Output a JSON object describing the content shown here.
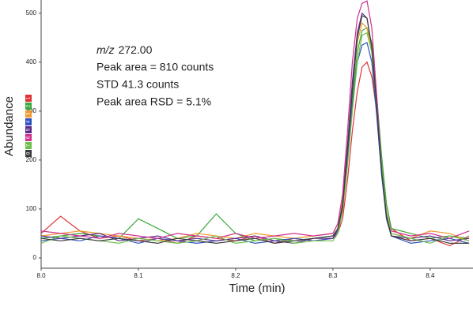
{
  "chart_data": {
    "type": "line",
    "x_label": "Time (min)",
    "y_label": "Abundance",
    "annotations": [
      [
        "m/z",
        "272.00"
      ],
      [
        "Peak area = 810 counts"
      ],
      [
        "STD 41.3 counts"
      ],
      [
        "Peak area RSD = 5.1%"
      ]
    ],
    "xlim": [
      8.0,
      8.444
    ],
    "ylim": [
      -21,
      527
    ],
    "xticks": [
      {
        "value": 8.0,
        "label": "8.0"
      },
      8.1,
      8.2,
      8.3,
      8.4
    ],
    "yticks": [
      0,
      100,
      200,
      300,
      400,
      500
    ],
    "x": [
      8.0,
      8.02,
      8.04,
      8.06,
      8.08,
      8.1,
      8.12,
      8.14,
      8.16,
      8.18,
      8.2,
      8.22,
      8.24,
      8.26,
      8.28,
      8.3,
      8.305,
      8.31,
      8.315,
      8.32,
      8.325,
      8.33,
      8.335,
      8.34,
      8.345,
      8.35,
      8.355,
      8.36,
      8.38,
      8.4,
      8.42,
      8.44
    ],
    "series": [
      {
        "name": "1",
        "color": "#e03434",
        "values": [
          50,
          85,
          55,
          40,
          45,
          35,
          40,
          30,
          45,
          40,
          35,
          45,
          30,
          40,
          35,
          40,
          50,
          80,
          160,
          260,
          340,
          390,
          400,
          370,
          300,
          200,
          110,
          60,
          35,
          40,
          25,
          45
        ]
      },
      {
        "name": "2",
        "color": "#3aa83a",
        "values": [
          40,
          45,
          50,
          45,
          40,
          80,
          60,
          40,
          45,
          90,
          50,
          35,
          40,
          35,
          40,
          45,
          60,
          100,
          200,
          320,
          420,
          465,
          470,
          440,
          330,
          210,
          110,
          60,
          50,
          40,
          45,
          40
        ]
      },
      {
        "name": "3",
        "color": "#f09a2a",
        "values": [
          45,
          50,
          55,
          50,
          45,
          40,
          35,
          40,
          50,
          45,
          40,
          50,
          45,
          40,
          45,
          50,
          70,
          120,
          230,
          350,
          440,
          480,
          470,
          420,
          300,
          180,
          90,
          50,
          40,
          55,
          50,
          35
        ]
      },
      {
        "name": "4",
        "color": "#3050c0",
        "values": [
          35,
          40,
          35,
          45,
          40,
          30,
          40,
          35,
          30,
          35,
          40,
          30,
          35,
          40,
          35,
          40,
          55,
          100,
          200,
          310,
          400,
          435,
          440,
          400,
          290,
          170,
          80,
          45,
          30,
          35,
          40,
          30
        ]
      },
      {
        "name": "5",
        "color": "#5a2a8a",
        "values": [
          45,
          40,
          45,
          50,
          35,
          40,
          45,
          35,
          40,
          35,
          40,
          45,
          35,
          30,
          40,
          40,
          60,
          110,
          230,
          360,
          460,
          500,
          490,
          430,
          310,
          180,
          80,
          45,
          40,
          45,
          35,
          40
        ]
      },
      {
        "name": "6",
        "color": "#d0308e",
        "values": [
          55,
          50,
          45,
          40,
          50,
          45,
          40,
          50,
          45,
          40,
          50,
          40,
          45,
          50,
          45,
          50,
          70,
          130,
          260,
          400,
          490,
          520,
          525,
          470,
          330,
          190,
          90,
          55,
          45,
          50,
          40,
          55
        ]
      },
      {
        "name": "7",
        "color": "#6cc04a",
        "values": [
          30,
          45,
          40,
          35,
          30,
          40,
          35,
          30,
          35,
          45,
          30,
          35,
          40,
          30,
          35,
          35,
          50,
          95,
          190,
          300,
          400,
          455,
          460,
          420,
          310,
          190,
          95,
          50,
          40,
          30,
          45,
          35
        ]
      },
      {
        "name": "8",
        "color": "#3c3c3c",
        "values": [
          40,
          35,
          40,
          35,
          40,
          35,
          30,
          40,
          35,
          30,
          35,
          40,
          30,
          35,
          40,
          45,
          60,
          105,
          220,
          340,
          450,
          495,
          490,
          430,
          310,
          180,
          85,
          45,
          35,
          40,
          30,
          30
        ]
      }
    ]
  }
}
